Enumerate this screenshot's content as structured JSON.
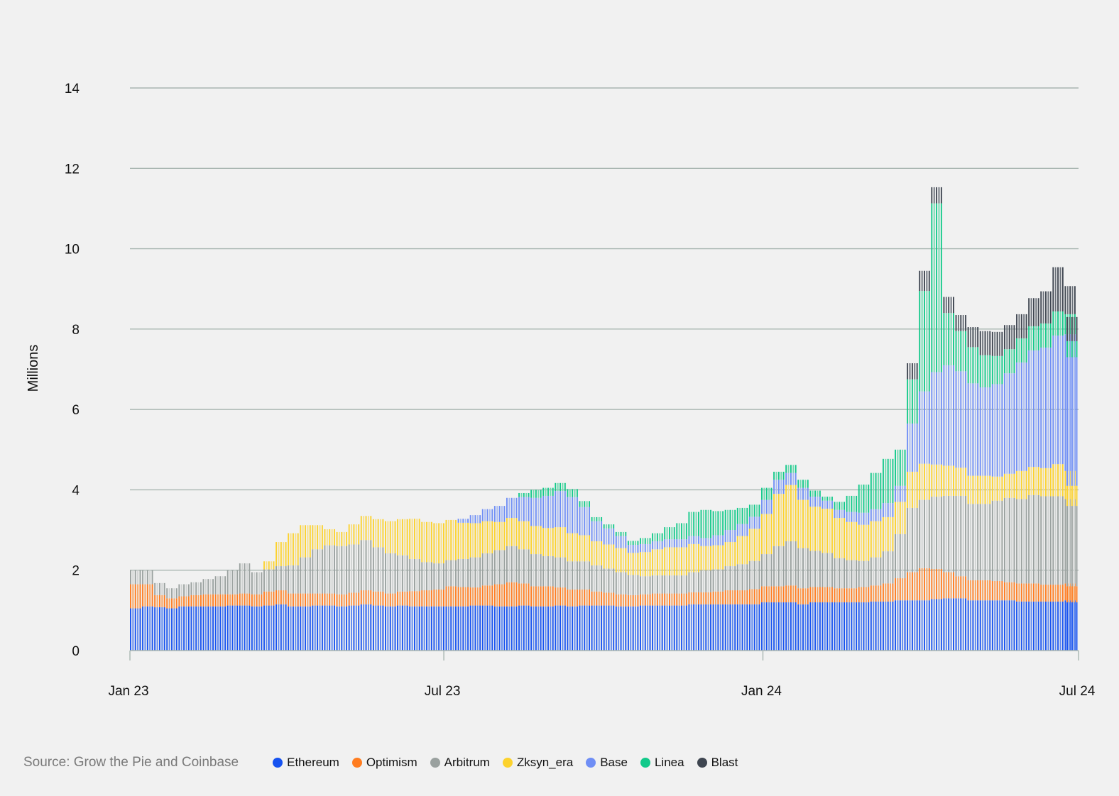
{
  "source_text": "Source: Grow the Pie and Coinbase",
  "chart_data": {
    "type": "bar",
    "stacked": true,
    "title": "",
    "xlabel": "",
    "ylabel": "Millions",
    "ylim": [
      0,
      14
    ],
    "yticks": [
      0,
      2,
      4,
      6,
      8,
      10,
      12,
      14
    ],
    "xlim": [
      "2023-01-01",
      "2024-07-01"
    ],
    "xticks": [
      {
        "date": "2023-01-01",
        "label": "Jan 23"
      },
      {
        "date": "2023-07-01",
        "label": "Jul 23"
      },
      {
        "date": "2024-01-01",
        "label": "Jan 24"
      },
      {
        "date": "2024-07-01",
        "label": "Jul 24"
      }
    ],
    "grid": true,
    "legend_position": "bottom",
    "interval_days": 7,
    "dates": [
      "2023-01-01",
      "2023-01-08",
      "2023-01-15",
      "2023-01-22",
      "2023-01-29",
      "2023-02-05",
      "2023-02-12",
      "2023-02-19",
      "2023-02-26",
      "2023-03-05",
      "2023-03-12",
      "2023-03-19",
      "2023-03-26",
      "2023-04-02",
      "2023-04-09",
      "2023-04-16",
      "2023-04-23",
      "2023-04-30",
      "2023-05-07",
      "2023-05-14",
      "2023-05-21",
      "2023-05-28",
      "2023-06-04",
      "2023-06-11",
      "2023-06-18",
      "2023-06-25",
      "2023-07-02",
      "2023-07-09",
      "2023-07-16",
      "2023-07-23",
      "2023-07-30",
      "2023-08-06",
      "2023-08-13",
      "2023-08-20",
      "2023-08-27",
      "2023-09-03",
      "2023-09-10",
      "2023-09-17",
      "2023-09-24",
      "2023-10-01",
      "2023-10-08",
      "2023-10-15",
      "2023-10-22",
      "2023-10-29",
      "2023-11-05",
      "2023-11-12",
      "2023-11-19",
      "2023-11-26",
      "2023-12-03",
      "2023-12-10",
      "2023-12-17",
      "2023-12-24",
      "2023-12-31",
      "2024-01-07",
      "2024-01-14",
      "2024-01-21",
      "2024-01-28",
      "2024-02-04",
      "2024-02-11",
      "2024-02-18",
      "2024-02-25",
      "2024-03-03",
      "2024-03-10",
      "2024-03-17",
      "2024-03-24",
      "2024-03-31",
      "2024-04-07",
      "2024-04-14",
      "2024-04-21",
      "2024-04-28",
      "2024-05-05",
      "2024-05-12",
      "2024-05-19",
      "2024-05-26",
      "2024-06-02",
      "2024-06-09",
      "2024-06-16",
      "2024-06-23",
      "2024-06-30"
    ],
    "series": [
      {
        "name": "Ethereum",
        "color": "#1652f0",
        "light": "#5b86ee",
        "values": [
          1.05,
          1.1,
          1.08,
          1.05,
          1.1,
          1.1,
          1.1,
          1.1,
          1.12,
          1.12,
          1.1,
          1.12,
          1.15,
          1.1,
          1.1,
          1.12,
          1.12,
          1.1,
          1.12,
          1.15,
          1.12,
          1.1,
          1.12,
          1.1,
          1.1,
          1.1,
          1.1,
          1.1,
          1.12,
          1.12,
          1.1,
          1.1,
          1.12,
          1.1,
          1.1,
          1.12,
          1.1,
          1.12,
          1.12,
          1.12,
          1.1,
          1.1,
          1.12,
          1.12,
          1.12,
          1.12,
          1.15,
          1.15,
          1.15,
          1.15,
          1.15,
          1.15,
          1.2,
          1.2,
          1.2,
          1.15,
          1.2,
          1.2,
          1.2,
          1.2,
          1.2,
          1.22,
          1.22,
          1.25,
          1.25,
          1.25,
          1.28,
          1.3,
          1.3,
          1.25,
          1.25,
          1.25,
          1.25,
          1.22,
          1.22,
          1.22,
          1.22,
          1.25,
          1.2
        ]
      },
      {
        "name": "Optimism",
        "color": "#ff7c1f",
        "light": "#f8a15a",
        "values": [
          0.6,
          0.55,
          0.3,
          0.25,
          0.25,
          0.28,
          0.3,
          0.3,
          0.28,
          0.3,
          0.3,
          0.35,
          0.35,
          0.32,
          0.32,
          0.3,
          0.3,
          0.3,
          0.32,
          0.35,
          0.35,
          0.32,
          0.35,
          0.38,
          0.4,
          0.42,
          0.5,
          0.48,
          0.45,
          0.5,
          0.55,
          0.6,
          0.55,
          0.5,
          0.5,
          0.45,
          0.42,
          0.4,
          0.35,
          0.32,
          0.3,
          0.28,
          0.28,
          0.3,
          0.3,
          0.3,
          0.3,
          0.3,
          0.32,
          0.35,
          0.35,
          0.38,
          0.4,
          0.4,
          0.42,
          0.4,
          0.38,
          0.38,
          0.35,
          0.35,
          0.38,
          0.4,
          0.45,
          0.55,
          0.7,
          0.8,
          0.75,
          0.65,
          0.55,
          0.5,
          0.5,
          0.48,
          0.45,
          0.45,
          0.45,
          0.42,
          0.42,
          0.42,
          0.4
        ]
      },
      {
        "name": "Arbitrum",
        "color": "#9aa19f",
        "light": "#cfd2d1",
        "values": [
          0.35,
          0.35,
          0.3,
          0.25,
          0.3,
          0.32,
          0.38,
          0.45,
          0.6,
          0.75,
          0.55,
          0.55,
          0.6,
          0.7,
          0.9,
          1.1,
          1.2,
          1.2,
          1.2,
          1.25,
          1.1,
          1.0,
          0.9,
          0.8,
          0.7,
          0.65,
          0.65,
          0.7,
          0.75,
          0.8,
          0.85,
          0.9,
          0.85,
          0.8,
          0.75,
          0.75,
          0.7,
          0.7,
          0.65,
          0.6,
          0.55,
          0.5,
          0.45,
          0.45,
          0.45,
          0.45,
          0.5,
          0.55,
          0.55,
          0.6,
          0.65,
          0.7,
          0.8,
          1.0,
          1.1,
          1.0,
          0.9,
          0.85,
          0.75,
          0.7,
          0.65,
          0.7,
          0.8,
          1.1,
          1.6,
          1.7,
          1.8,
          1.9,
          2.0,
          1.9,
          1.9,
          2.0,
          2.1,
          2.1,
          2.2,
          2.2,
          2.2,
          2.1,
          2.0
        ]
      },
      {
        "name": "Zksyn_era",
        "color": "#fcd22d",
        "light": "#f9df84",
        "values": [
          0,
          0,
          0,
          0,
          0,
          0,
          0,
          0,
          0,
          0,
          0,
          0.2,
          0.6,
          0.8,
          0.8,
          0.6,
          0.4,
          0.35,
          0.5,
          0.6,
          0.7,
          0.8,
          0.9,
          1.0,
          1.0,
          1.0,
          1.0,
          0.9,
          0.85,
          0.8,
          0.7,
          0.7,
          0.7,
          0.7,
          0.7,
          0.75,
          0.7,
          0.65,
          0.6,
          0.6,
          0.6,
          0.55,
          0.6,
          0.65,
          0.7,
          0.7,
          0.7,
          0.6,
          0.6,
          0.6,
          0.7,
          0.8,
          1.0,
          1.3,
          1.4,
          1.2,
          1.1,
          1.1,
          1.0,
          0.95,
          0.9,
          0.9,
          0.85,
          0.8,
          0.9,
          0.9,
          0.8,
          0.75,
          0.7,
          0.7,
          0.7,
          0.6,
          0.6,
          0.7,
          0.7,
          0.7,
          0.8,
          0.7,
          0.5
        ]
      },
      {
        "name": "Base",
        "color": "#6f8ef5",
        "light": "#a7baf2",
        "values": [
          0,
          0,
          0,
          0,
          0,
          0,
          0,
          0,
          0,
          0,
          0,
          0,
          0,
          0,
          0,
          0,
          0,
          0,
          0,
          0,
          0,
          0,
          0,
          0,
          0,
          0,
          0,
          0.1,
          0.2,
          0.3,
          0.4,
          0.5,
          0.6,
          0.7,
          0.8,
          0.9,
          0.9,
          0.7,
          0.5,
          0.4,
          0.3,
          0.2,
          0.2,
          0.2,
          0.2,
          0.2,
          0.2,
          0.2,
          0.25,
          0.3,
          0.3,
          0.3,
          0.35,
          0.35,
          0.3,
          0.3,
          0.25,
          0.2,
          0.2,
          0.25,
          0.3,
          0.3,
          0.35,
          0.4,
          1.2,
          1.8,
          2.3,
          2.5,
          2.4,
          2.3,
          2.2,
          2.3,
          2.5,
          2.7,
          2.9,
          3.0,
          3.2,
          3.4,
          3.2
        ]
      },
      {
        "name": "Linea",
        "color": "#12c98a",
        "light": "#6edaaf",
        "values": [
          0,
          0,
          0,
          0,
          0,
          0,
          0,
          0,
          0,
          0,
          0,
          0,
          0,
          0,
          0,
          0,
          0,
          0,
          0,
          0,
          0,
          0,
          0,
          0,
          0,
          0,
          0,
          0,
          0,
          0,
          0,
          0,
          0.1,
          0.2,
          0.2,
          0.2,
          0.2,
          0.15,
          0.1,
          0.1,
          0.1,
          0.1,
          0.15,
          0.2,
          0.3,
          0.4,
          0.6,
          0.7,
          0.6,
          0.5,
          0.4,
          0.3,
          0.3,
          0.2,
          0.2,
          0.2,
          0.15,
          0.1,
          0.2,
          0.4,
          0.7,
          0.9,
          1.1,
          0.9,
          1.1,
          2.5,
          4.2,
          1.3,
          1.0,
          0.9,
          0.8,
          0.7,
          0.6,
          0.6,
          0.6,
          0.6,
          0.6,
          0.5,
          0.4
        ]
      },
      {
        "name": "Blast",
        "color": "#3e4550",
        "light": "#6a7079",
        "values": [
          0,
          0,
          0,
          0,
          0,
          0,
          0,
          0,
          0,
          0,
          0,
          0,
          0,
          0,
          0,
          0,
          0,
          0,
          0,
          0,
          0,
          0,
          0,
          0,
          0,
          0,
          0,
          0,
          0,
          0,
          0,
          0,
          0,
          0,
          0,
          0,
          0,
          0,
          0,
          0,
          0,
          0,
          0,
          0,
          0,
          0,
          0,
          0,
          0,
          0,
          0,
          0,
          0,
          0,
          0,
          0,
          0,
          0,
          0,
          0,
          0,
          0,
          0,
          0,
          0.4,
          0.5,
          0.4,
          0.4,
          0.4,
          0.5,
          0.6,
          0.6,
          0.6,
          0.6,
          0.7,
          0.8,
          1.1,
          0.7,
          0.6
        ]
      }
    ]
  }
}
